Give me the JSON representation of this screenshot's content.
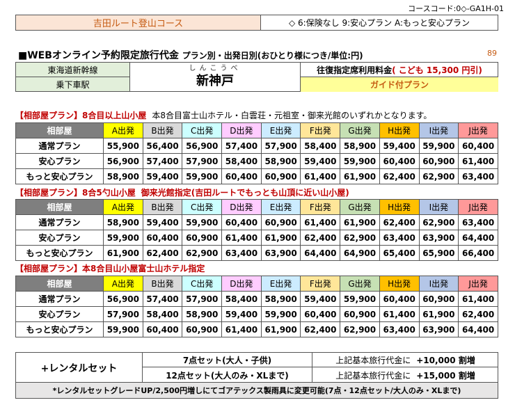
{
  "course_code": "コースコード:0◇-GA1H-01",
  "course_name": "吉田ルート登山コース",
  "course_notes": "◇ 6:保険なし 9:安心プラン A:もっと安心プラン",
  "headline": {
    "title": "■WEBオンライン予約限定旅行代金",
    "sub": "プラン別・出発日別(おひとり様につき/単位:円)",
    "page_no": "89"
  },
  "info": {
    "line": "東海道新幹線",
    "station_label": "乗下車駅",
    "dest_ruby": "しんこうべ",
    "dest_kanji": "新神戸",
    "fare_label": "往復指定席利用料金",
    "fare_child": "( こども  15,300  円引)",
    "guide": "ガイド付プラン"
  },
  "colors": {
    "A": "#ffff00",
    "B": "#d9d9d9",
    "C": "#ccffff",
    "D": "#ffccff",
    "E": "#ccecff",
    "F": "#ffe699",
    "G": "#c6e0b4",
    "H": "#ffc000",
    "I": "#b4c6e7",
    "J": "#ff9999"
  },
  "columns": [
    "A出発",
    "B出発",
    "C出発",
    "D出発",
    "E出発",
    "F出発",
    "G出発",
    "H出発",
    "I出発",
    "J出発"
  ],
  "room_label": "相部屋",
  "sections": [
    {
      "title": "【相部屋プラン】8合目以上山小屋",
      "desc": "本8合目富士山ホテル・白雲荘・元祖室・御来光館のいずれかとなります。",
      "rows": [
        {
          "plan": "通常プラン",
          "prices": [
            "55,900",
            "56,400",
            "56,900",
            "57,400",
            "57,900",
            "58,400",
            "58,900",
            "59,400",
            "59,900",
            "60,400"
          ]
        },
        {
          "plan": "安心プラン",
          "prices": [
            "56,900",
            "57,400",
            "57,900",
            "58,400",
            "58,900",
            "59,400",
            "59,900",
            "60,400",
            "60,900",
            "61,400"
          ]
        },
        {
          "plan": "もっと安心プラン",
          "prices": [
            "58,900",
            "59,400",
            "59,900",
            "60,400",
            "60,900",
            "61,400",
            "61,900",
            "62,400",
            "62,900",
            "63,400"
          ]
        }
      ]
    },
    {
      "title": "【相部屋プラン】8合5勺山小屋",
      "desc": "御来光館指定(吉田ルートでもっとも山頂に近い山小屋)",
      "rows": [
        {
          "plan": "通常プラン",
          "prices": [
            "58,900",
            "59,400",
            "59,900",
            "60,400",
            "60,900",
            "61,400",
            "61,900",
            "62,400",
            "62,900",
            "63,400"
          ]
        },
        {
          "plan": "安心プラン",
          "prices": [
            "59,900",
            "60,400",
            "60,900",
            "61,400",
            "61,900",
            "62,400",
            "62,900",
            "63,400",
            "63,900",
            "64,400"
          ]
        },
        {
          "plan": "もっと安心プラン",
          "prices": [
            "61,900",
            "62,400",
            "62,900",
            "63,400",
            "63,900",
            "64,400",
            "64,900",
            "65,400",
            "65,900",
            "66,400"
          ]
        }
      ]
    },
    {
      "title": "【相部屋プラン】本8合目山小屋富士山ホテル指定",
      "desc": "",
      "rows": [
        {
          "plan": "通常プラン",
          "prices": [
            "56,900",
            "57,400",
            "57,900",
            "58,400",
            "58,900",
            "59,400",
            "59,900",
            "60,400",
            "60,900",
            "61,400"
          ]
        },
        {
          "plan": "安心プラン",
          "prices": [
            "57,900",
            "58,400",
            "58,900",
            "59,400",
            "59,900",
            "60,400",
            "60,900",
            "61,400",
            "61,900",
            "62,400"
          ]
        },
        {
          "plan": "もっと安心プラン",
          "prices": [
            "59,900",
            "60,400",
            "60,900",
            "61,400",
            "61,900",
            "62,400",
            "62,900",
            "63,400",
            "63,900",
            "64,400"
          ]
        }
      ]
    }
  ],
  "rental": {
    "label": "+レンタルセット",
    "set7": "7点セット(大人・子供)",
    "set12": "12点セット(大人のみ・XLまで)",
    "base": "上記基本旅行代金に",
    "add7": "+10,000  割増",
    "add12": "+15,000  割増"
  },
  "note": "*レンタルセットグレードUP/2,500円増しにてゴアテックス製雨具に変更可能(7点・12点セット/大人のみ・XLまで)"
}
